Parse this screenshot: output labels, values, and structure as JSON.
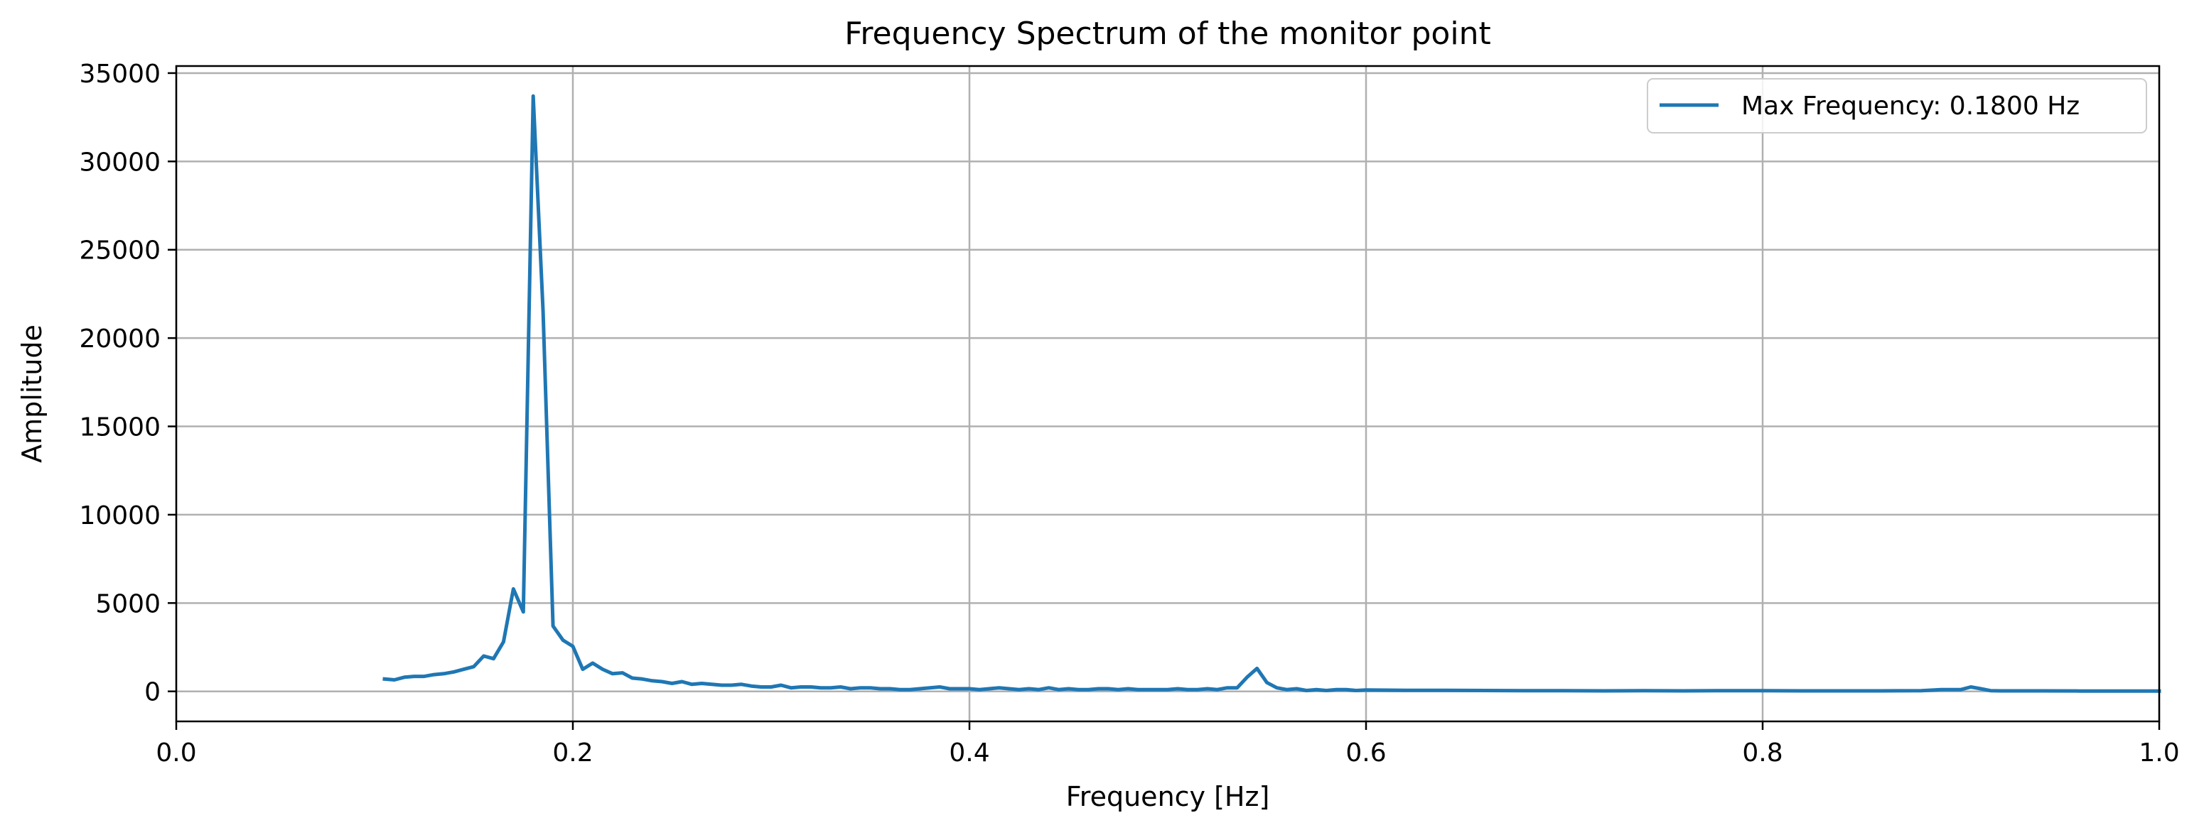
{
  "chart_data": {
    "type": "line",
    "title": "Frequency Spectrum of the monitor point",
    "xlabel": "Frequency [Hz]",
    "ylabel": "Amplitude",
    "xlim": [
      0.0,
      1.0
    ],
    "ylim": [
      -1700,
      35400
    ],
    "grid": true,
    "legend_position": "top-right",
    "x_ticks": [
      "0.0",
      "0.2",
      "0.4",
      "0.6",
      "0.8",
      "1.0"
    ],
    "y_ticks": [
      "0",
      "5000",
      "10000",
      "15000",
      "20000",
      "25000",
      "30000",
      "35000"
    ],
    "series": [
      {
        "name": "Max Frequency: 0.1800 Hz",
        "color": "#1f77b4",
        "x": [
          0.105,
          0.11,
          0.115,
          0.12,
          0.125,
          0.13,
          0.135,
          0.14,
          0.145,
          0.15,
          0.155,
          0.16,
          0.165,
          0.17,
          0.175,
          0.18,
          0.185,
          0.19,
          0.195,
          0.2,
          0.205,
          0.21,
          0.215,
          0.22,
          0.225,
          0.23,
          0.235,
          0.24,
          0.245,
          0.25,
          0.255,
          0.26,
          0.265,
          0.27,
          0.275,
          0.28,
          0.285,
          0.29,
          0.295,
          0.3,
          0.305,
          0.31,
          0.315,
          0.32,
          0.325,
          0.33,
          0.335,
          0.34,
          0.345,
          0.35,
          0.355,
          0.36,
          0.365,
          0.37,
          0.375,
          0.38,
          0.385,
          0.39,
          0.395,
          0.4,
          0.405,
          0.41,
          0.415,
          0.42,
          0.425,
          0.43,
          0.435,
          0.44,
          0.445,
          0.45,
          0.455,
          0.46,
          0.465,
          0.47,
          0.475,
          0.48,
          0.485,
          0.49,
          0.495,
          0.5,
          0.505,
          0.51,
          0.515,
          0.52,
          0.525,
          0.53,
          0.535,
          0.54,
          0.545,
          0.55,
          0.555,
          0.56,
          0.565,
          0.57,
          0.575,
          0.58,
          0.585,
          0.59,
          0.595,
          0.6,
          0.62,
          0.64,
          0.66,
          0.68,
          0.7,
          0.72,
          0.74,
          0.76,
          0.78,
          0.8,
          0.82,
          0.84,
          0.86,
          0.88,
          0.89,
          0.895,
          0.9,
          0.905,
          0.91,
          0.915,
          0.92,
          0.94,
          0.96,
          0.98,
          1.0
        ],
        "y": [
          700,
          650,
          800,
          850,
          850,
          950,
          1000,
          1100,
          1250,
          1400,
          2000,
          1850,
          2800,
          5800,
          4500,
          33700,
          21500,
          3700,
          2900,
          2550,
          1250,
          1600,
          1250,
          1000,
          1050,
          750,
          700,
          600,
          550,
          450,
          550,
          400,
          450,
          400,
          350,
          350,
          400,
          300,
          250,
          250,
          350,
          200,
          250,
          250,
          200,
          200,
          250,
          150,
          200,
          200,
          150,
          150,
          100,
          100,
          150,
          200,
          250,
          150,
          150,
          150,
          100,
          150,
          200,
          150,
          100,
          150,
          100,
          200,
          100,
          150,
          100,
          100,
          150,
          150,
          100,
          150,
          100,
          100,
          100,
          100,
          150,
          100,
          100,
          150,
          100,
          200,
          200,
          800,
          1300,
          500,
          200,
          100,
          150,
          50,
          100,
          50,
          100,
          100,
          50,
          80,
          60,
          60,
          50,
          40,
          40,
          30,
          40,
          30,
          40,
          40,
          30,
          30,
          30,
          40,
          100,
          100,
          100,
          250,
          150,
          40,
          30,
          30,
          20,
          20,
          20
        ]
      }
    ]
  }
}
